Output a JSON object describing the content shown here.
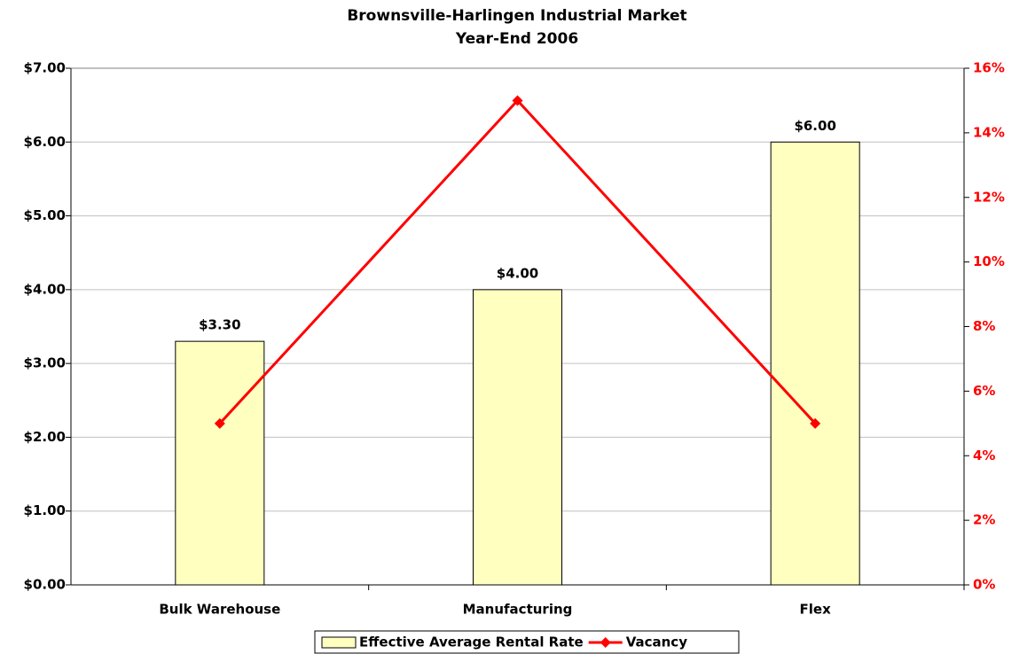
{
  "chart_data": {
    "type": "combo",
    "title": "Brownsville-Harlingen Industrial Market",
    "subtitle": "Year-End 2006",
    "categories": [
      "Bulk Warehouse",
      "Manufacturing",
      "Flex"
    ],
    "series": [
      {
        "name": "Effective Average Rental Rate",
        "type": "bar",
        "color": "#ffffc0",
        "values": [
          3.3,
          4,
          6
        ],
        "value_labels": [
          "$3.30",
          "$4.00",
          "$6.00"
        ]
      },
      {
        "name": "Vacancy",
        "type": "line",
        "axis": "y2",
        "color": "#ff0000",
        "values": [
          5,
          15,
          5
        ]
      }
    ],
    "ylim": [
      0,
      7
    ],
    "yticks": [
      {
        "value": 0,
        "label": "$0.00"
      },
      {
        "value": 1,
        "label": "$1.00"
      },
      {
        "value": 2,
        "label": "$2.00"
      },
      {
        "value": 3,
        "label": "$3.00"
      },
      {
        "value": 4,
        "label": "$4.00"
      },
      {
        "value": 5,
        "label": "$5.00"
      },
      {
        "value": 6,
        "label": "$6.00"
      },
      {
        "value": 7,
        "label": "$7.00"
      }
    ],
    "y2lim": [
      0,
      16
    ],
    "y2ticks": [
      {
        "value": 0,
        "label": "0%"
      },
      {
        "value": 2,
        "label": "2%"
      },
      {
        "value": 4,
        "label": "4%"
      },
      {
        "value": 6,
        "label": "6%"
      },
      {
        "value": 8,
        "label": "8%"
      },
      {
        "value": 10,
        "label": "10%"
      },
      {
        "value": 12,
        "label": "12%"
      },
      {
        "value": 14,
        "label": "14%"
      },
      {
        "value": 16,
        "label": "16%"
      }
    ],
    "y2color": "#ff0000",
    "grid": true,
    "legend": "bottom"
  }
}
